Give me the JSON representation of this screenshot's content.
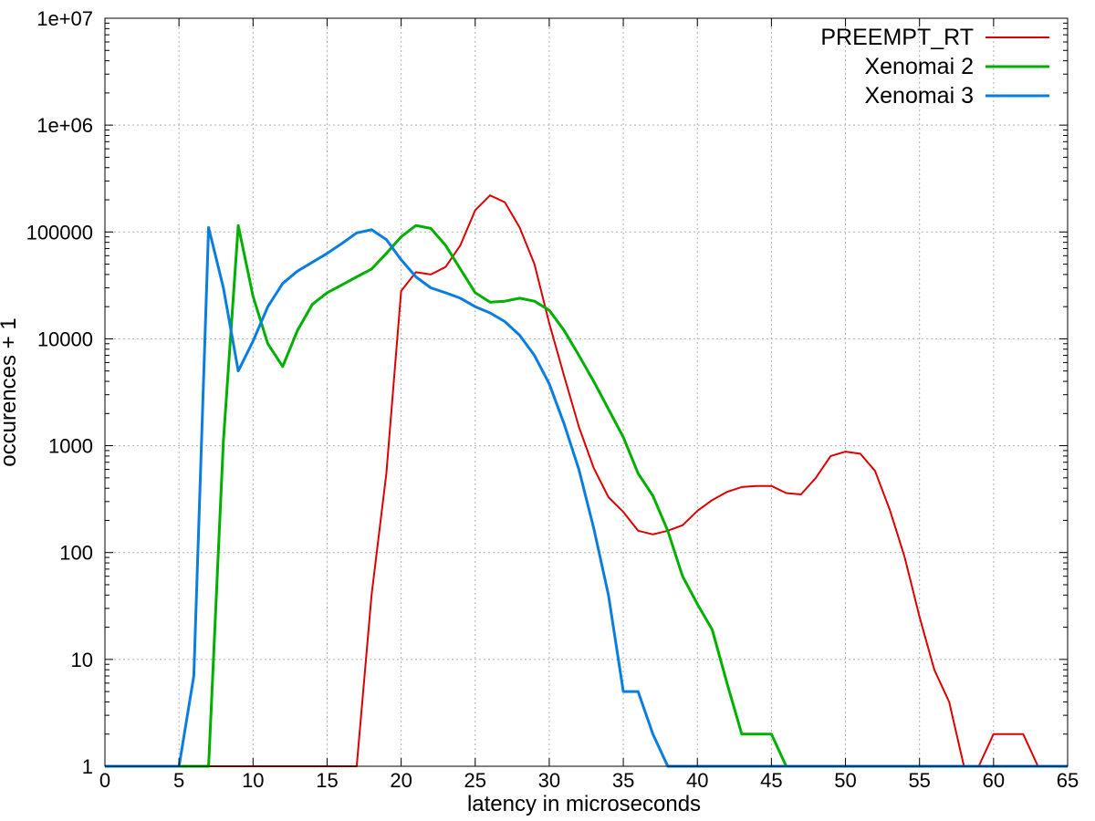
{
  "chart_data": {
    "type": "line",
    "xlabel": "latency in microseconds",
    "ylabel": "occurences + 1",
    "xlim": [
      0,
      65
    ],
    "ylim": [
      1,
      10000000
    ],
    "yscale": "log",
    "grid": true,
    "legend_position": "top-right",
    "x_ticks": [
      0,
      5,
      10,
      15,
      20,
      25,
      30,
      35,
      40,
      45,
      50,
      55,
      60,
      65
    ],
    "x_tick_labels": [
      "0",
      "5",
      "10",
      "15",
      "20",
      "25",
      "30",
      "35",
      "40",
      "45",
      "50",
      "55",
      "60",
      "65"
    ],
    "y_ticks": [
      1,
      10,
      100,
      1000,
      10000,
      100000,
      1000000,
      10000000
    ],
    "y_tick_labels": [
      "1",
      "10",
      "100",
      "1000",
      "10000",
      "100000",
      "1e+06",
      "1e+07"
    ],
    "series": [
      {
        "name": "PREEMPT_RT",
        "color": "#dd0000",
        "stroke": "thin",
        "points": [
          [
            0,
            1
          ],
          [
            17,
            1
          ],
          [
            18,
            40
          ],
          [
            19,
            550
          ],
          [
            20,
            28000
          ],
          [
            21,
            42000
          ],
          [
            22,
            40000
          ],
          [
            23,
            47000
          ],
          [
            24,
            75000
          ],
          [
            25,
            160000
          ],
          [
            26,
            220000
          ],
          [
            27,
            190000
          ],
          [
            28,
            110000
          ],
          [
            29,
            50000
          ],
          [
            30,
            14000
          ],
          [
            31,
            4500
          ],
          [
            32,
            1500
          ],
          [
            33,
            620
          ],
          [
            34,
            330
          ],
          [
            35,
            240
          ],
          [
            36,
            160
          ],
          [
            37,
            148
          ],
          [
            38,
            160
          ],
          [
            39,
            180
          ],
          [
            40,
            245
          ],
          [
            41,
            310
          ],
          [
            42,
            370
          ],
          [
            43,
            410
          ],
          [
            44,
            420
          ],
          [
            45,
            420
          ],
          [
            46,
            360
          ],
          [
            47,
            350
          ],
          [
            48,
            500
          ],
          [
            49,
            800
          ],
          [
            50,
            880
          ],
          [
            51,
            840
          ],
          [
            52,
            580
          ],
          [
            53,
            250
          ],
          [
            54,
            90
          ],
          [
            55,
            25
          ],
          [
            56,
            8
          ],
          [
            57,
            4
          ],
          [
            58,
            1
          ],
          [
            59,
            1
          ],
          [
            60,
            2
          ],
          [
            61,
            2
          ],
          [
            62,
            2
          ],
          [
            63,
            1
          ],
          [
            65,
            1
          ]
        ]
      },
      {
        "name": "Xenomai 2",
        "color": "#00b000",
        "stroke": "thick",
        "points": [
          [
            0,
            1
          ],
          [
            7,
            1
          ],
          [
            8,
            1100
          ],
          [
            9,
            115000
          ],
          [
            10,
            25000
          ],
          [
            11,
            9000
          ],
          [
            12,
            5500
          ],
          [
            13,
            12000
          ],
          [
            14,
            21000
          ],
          [
            15,
            27000
          ],
          [
            16,
            32000
          ],
          [
            17,
            38000
          ],
          [
            18,
            45000
          ],
          [
            19,
            63000
          ],
          [
            20,
            90000
          ],
          [
            21,
            115000
          ],
          [
            22,
            108000
          ],
          [
            23,
            75000
          ],
          [
            24,
            45000
          ],
          [
            25,
            27000
          ],
          [
            26,
            22000
          ],
          [
            27,
            22500
          ],
          [
            28,
            24000
          ],
          [
            29,
            22500
          ],
          [
            30,
            18500
          ],
          [
            31,
            12000
          ],
          [
            32,
            7000
          ],
          [
            33,
            4000
          ],
          [
            34,
            2200
          ],
          [
            35,
            1200
          ],
          [
            36,
            550
          ],
          [
            37,
            340
          ],
          [
            38,
            160
          ],
          [
            39,
            60
          ],
          [
            40,
            33
          ],
          [
            41,
            19
          ],
          [
            42,
            6
          ],
          [
            43,
            2
          ],
          [
            44,
            2
          ],
          [
            45,
            2
          ],
          [
            46,
            1
          ],
          [
            65,
            1
          ]
        ]
      },
      {
        "name": "Xenomai 3",
        "color": "#0a7de0",
        "stroke": "thick",
        "points": [
          [
            0,
            1
          ],
          [
            5,
            1
          ],
          [
            6,
            7
          ],
          [
            7,
            110000
          ],
          [
            8,
            30000
          ],
          [
            9,
            5000
          ],
          [
            10,
            9500
          ],
          [
            11,
            20000
          ],
          [
            12,
            33000
          ],
          [
            13,
            43000
          ],
          [
            14,
            52000
          ],
          [
            15,
            63000
          ],
          [
            16,
            78000
          ],
          [
            17,
            98000
          ],
          [
            18,
            105000
          ],
          [
            19,
            85000
          ],
          [
            20,
            55000
          ],
          [
            21,
            38000
          ],
          [
            22,
            30000
          ],
          [
            23,
            27000
          ],
          [
            24,
            24000
          ],
          [
            25,
            20000
          ],
          [
            26,
            17500
          ],
          [
            27,
            14500
          ],
          [
            28,
            10800
          ],
          [
            29,
            7000
          ],
          [
            30,
            3800
          ],
          [
            31,
            1600
          ],
          [
            32,
            600
          ],
          [
            33,
            170
          ],
          [
            34,
            40
          ],
          [
            35,
            5
          ],
          [
            36,
            5
          ],
          [
            37,
            2
          ],
          [
            38,
            1
          ],
          [
            65,
            1
          ]
        ]
      }
    ]
  }
}
